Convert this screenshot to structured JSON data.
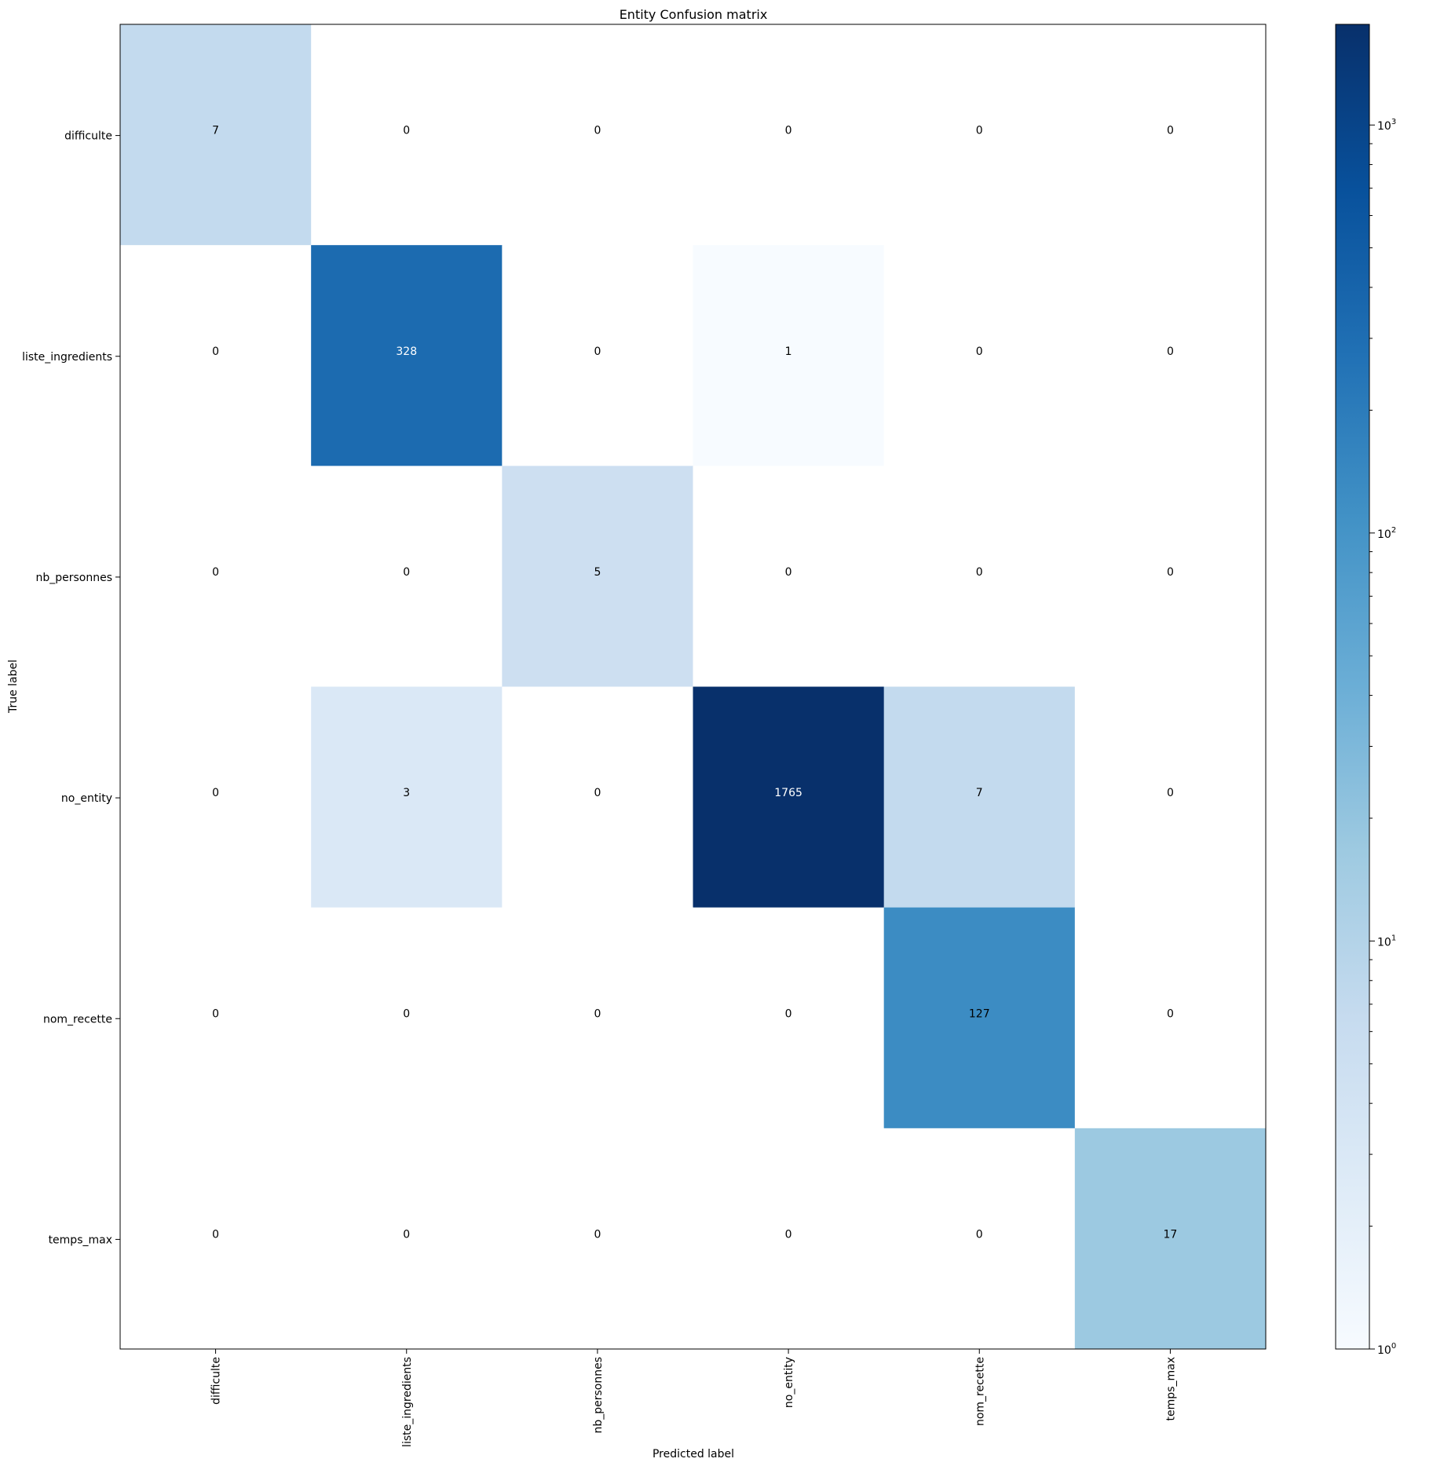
{
  "chart_data": {
    "type": "heatmap",
    "title": "Entity Confusion matrix",
    "xlabel": "Predicted label",
    "ylabel": "True label",
    "row_labels": [
      "difficulte",
      "liste_ingredients",
      "nb_personnes",
      "no_entity",
      "nom_recette",
      "temps_max"
    ],
    "col_labels": [
      "difficulte",
      "liste_ingredients",
      "nb_personnes",
      "no_entity",
      "nom_recette",
      "temps_max"
    ],
    "matrix": [
      [
        7,
        0,
        0,
        0,
        0,
        0
      ],
      [
        0,
        328,
        0,
        1,
        0,
        0
      ],
      [
        0,
        0,
        5,
        0,
        0,
        0
      ],
      [
        0,
        3,
        0,
        1765,
        7,
        0
      ],
      [
        0,
        0,
        0,
        0,
        127,
        0
      ],
      [
        0,
        0,
        0,
        0,
        0,
        17
      ]
    ],
    "color_scale": "log",
    "colormap": "Blues",
    "colorbar": {
      "range": [
        1,
        1765
      ],
      "tick_labels": [
        {
          "value": 1,
          "base": "10",
          "exp": "0"
        },
        {
          "value": 10,
          "base": "10",
          "exp": "1"
        },
        {
          "value": 100,
          "base": "10",
          "exp": "2"
        },
        {
          "value": 1000,
          "base": "10",
          "exp": "3"
        }
      ]
    },
    "grid": false
  }
}
